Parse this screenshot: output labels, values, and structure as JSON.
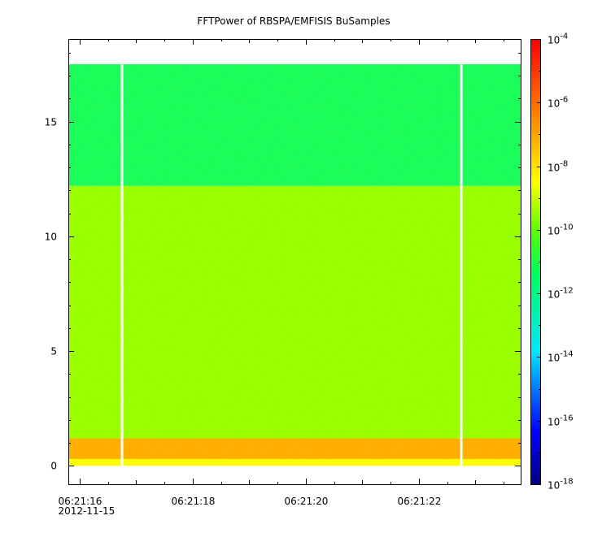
{
  "chart_data": {
    "type": "heatmap",
    "title": "FFTPower of RBSPA/EMFISIS  BuSamples",
    "xlabel": "",
    "ylabel": "",
    "x_ticks": [
      {
        "time": "06:21:16",
        "date": "2012-11-15"
      },
      {
        "time": "06:21:18"
      },
      {
        "time": "06:21:20"
      },
      {
        "time": "06:21:22"
      }
    ],
    "xlim": [
      "06:21:15.8",
      "06:21:23.8"
    ],
    "y_ticks": [
      0,
      5,
      10,
      15
    ],
    "ylim": [
      -0.8,
      18.6
    ],
    "data_extent": {
      "t_start": "06:21:15.8",
      "t_end": "06:21:23.8",
      "y_start": 0,
      "y_end": 17.5
    },
    "gaps": [
      {
        "time": "06:21:16.75"
      },
      {
        "time": "06:21:22.75"
      }
    ],
    "bands": [
      {
        "y_range": [
          0,
          0.3
        ],
        "power": 3e-09
      },
      {
        "y_range": [
          0.3,
          1.2
        ],
        "power": 1e-07
      },
      {
        "y_range": [
          1.2,
          12.2
        ],
        "power": 3e-10
      },
      {
        "y_range": [
          12.2,
          17.5
        ],
        "power": 3e-12
      }
    ],
    "colorbar": {
      "scale": "log",
      "range": [
        1e-18,
        0.0001
      ],
      "ticks": [
        {
          "base": "10",
          "exp": "-4"
        },
        {
          "base": "10",
          "exp": "-6"
        },
        {
          "base": "10",
          "exp": "-8"
        },
        {
          "base": "10",
          "exp": "-10"
        },
        {
          "base": "10",
          "exp": "-12"
        },
        {
          "base": "10",
          "exp": "-14"
        },
        {
          "base": "10",
          "exp": "-16"
        },
        {
          "base": "10",
          "exp": "-18"
        }
      ],
      "tick_values": [
        -4,
        -6,
        -8,
        -10,
        -12,
        -14,
        -16,
        -18
      ]
    }
  }
}
